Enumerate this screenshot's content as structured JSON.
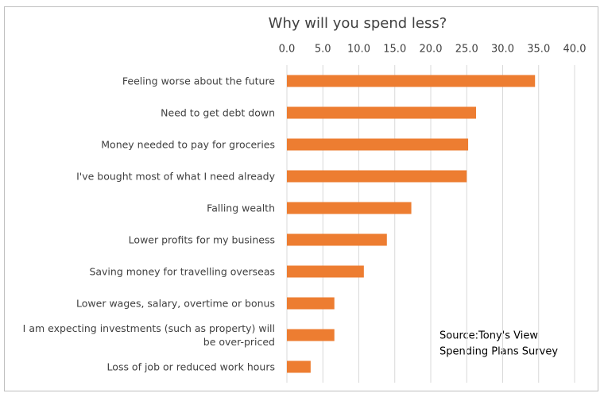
{
  "chart_data": {
    "type": "hbar",
    "title": "Why will you spend less?",
    "categories": [
      "Feeling worse about the future",
      "Need to get debt down",
      "Money needed to pay for groceries",
      "I've bought most of what I need already",
      "Falling wealth",
      "Lower profits for my business",
      "Saving money for travelling overseas",
      "Lower wages, salary, overtime or bonus",
      "I am expecting investments (such as property) will be over-priced",
      "Loss of job or reduced work hours"
    ],
    "values": [
      34.5,
      26.3,
      25.2,
      25.0,
      17.3,
      13.9,
      10.7,
      6.6,
      6.6,
      3.3
    ],
    "color": "#ed7d31",
    "xlim": [
      0,
      40
    ],
    "xticks": [
      {
        "value": 0,
        "label": "0.0"
      },
      {
        "value": 5,
        "label": "5.0"
      },
      {
        "value": 10,
        "label": "10.0"
      },
      {
        "value": 15,
        "label": "15.0"
      },
      {
        "value": 20,
        "label": "20.0"
      },
      {
        "value": 25,
        "label": "25.0"
      },
      {
        "value": 30,
        "label": "30.0"
      },
      {
        "value": 35,
        "label": "35.0"
      },
      {
        "value": 40,
        "label": "40.0"
      }
    ],
    "grid": true,
    "annotation": [
      "Source:Tony's View",
      "Spending Plans Survey"
    ]
  }
}
